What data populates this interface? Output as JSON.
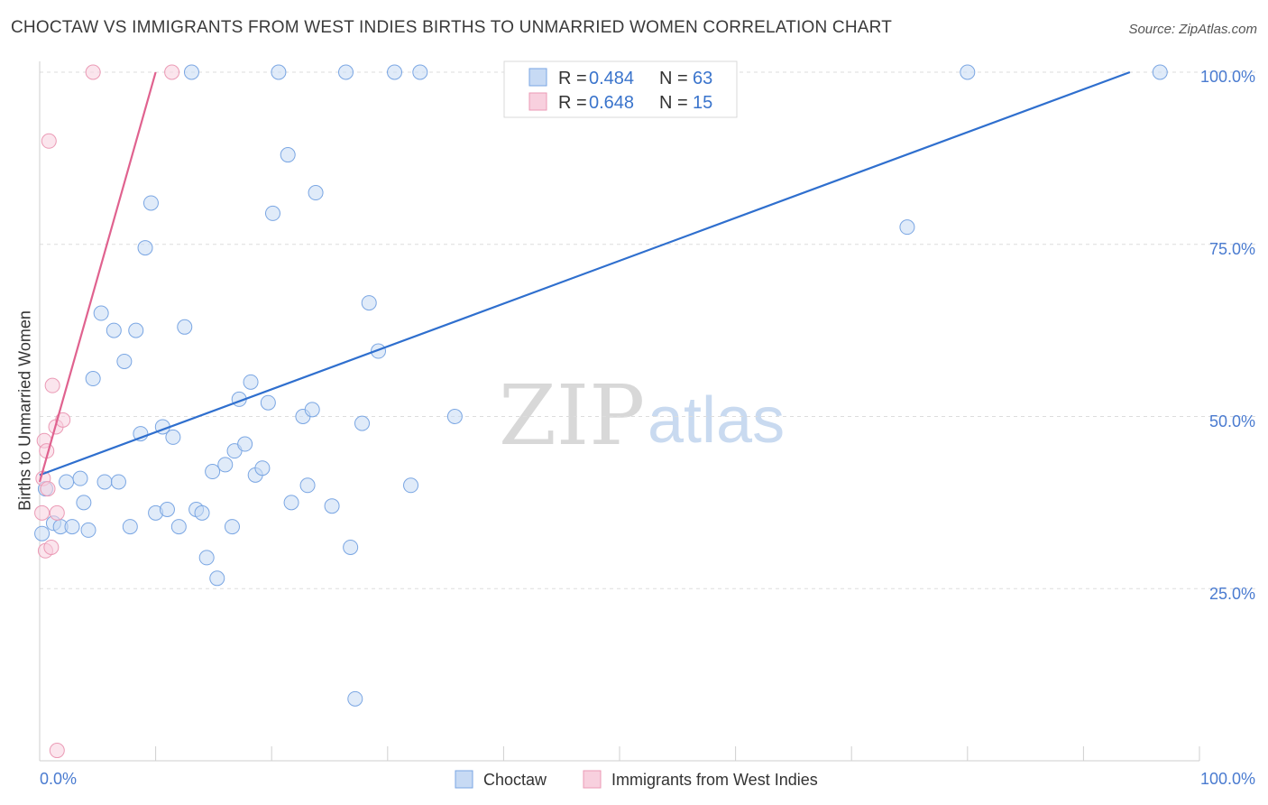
{
  "chart_data": {
    "type": "scatter",
    "title": "CHOCTAW VS IMMIGRANTS FROM WEST INDIES BIRTHS TO UNMARRIED WOMEN CORRELATION CHART",
    "source": "Source: ZipAtlas.com",
    "xlabel": "",
    "ylabel": "Births to Unmarried Women",
    "xlim": [
      0,
      100
    ],
    "ylim": [
      0,
      100
    ],
    "x_tick_labels": [
      "0.0%",
      "100.0%"
    ],
    "y_tick_labels": [
      "25.0%",
      "50.0%",
      "75.0%",
      "100.0%"
    ],
    "watermark": {
      "part1": "ZIP",
      "part2": "atlas"
    },
    "legend_labels": {
      "r": "R =",
      "n": "N ="
    },
    "series": [
      {
        "name": "Choctaw",
        "color": "#7aa6e3",
        "fill": "#c7daf4",
        "line_color": "#2f6fce",
        "r": "0.484",
        "n": "63",
        "trend": {
          "x0": 0,
          "y0": 41.5,
          "x1": 94,
          "y1": 100
        },
        "points": [
          [
            0.5,
            39.5
          ],
          [
            1.2,
            34.5
          ],
          [
            1.8,
            34.0
          ],
          [
            2.3,
            40.5
          ],
          [
            2.8,
            34.0
          ],
          [
            3.5,
            41.0
          ],
          [
            3.8,
            37.5
          ],
          [
            4.2,
            33.5
          ],
          [
            4.6,
            55.5
          ],
          [
            5.3,
            65.0
          ],
          [
            5.6,
            40.5
          ],
          [
            6.4,
            62.5
          ],
          [
            6.8,
            40.5
          ],
          [
            7.3,
            58.0
          ],
          [
            7.8,
            34.0
          ],
          [
            8.3,
            62.5
          ],
          [
            8.7,
            47.5
          ],
          [
            9.1,
            74.5
          ],
          [
            9.6,
            81.0
          ],
          [
            10.0,
            36.0
          ],
          [
            10.6,
            48.5
          ],
          [
            11.0,
            36.5
          ],
          [
            11.5,
            47.0
          ],
          [
            12.0,
            34.0
          ],
          [
            12.5,
            63.0
          ],
          [
            13.1,
            100
          ],
          [
            13.5,
            36.5
          ],
          [
            14.0,
            36.0
          ],
          [
            14.4,
            29.5
          ],
          [
            14.9,
            42.0
          ],
          [
            15.3,
            26.5
          ],
          [
            16.0,
            43.0
          ],
          [
            16.6,
            34.0
          ],
          [
            16.8,
            45.0
          ],
          [
            17.2,
            52.5
          ],
          [
            17.7,
            46.0
          ],
          [
            18.2,
            55.0
          ],
          [
            18.6,
            41.5
          ],
          [
            19.2,
            42.5
          ],
          [
            19.7,
            52.0
          ],
          [
            20.1,
            79.5
          ],
          [
            20.6,
            100
          ],
          [
            21.4,
            88.0
          ],
          [
            21.7,
            37.5
          ],
          [
            22.7,
            50.0
          ],
          [
            23.1,
            40.0
          ],
          [
            23.5,
            51.0
          ],
          [
            23.8,
            82.5
          ],
          [
            25.2,
            37.0
          ],
          [
            26.4,
            100
          ],
          [
            26.8,
            31.0
          ],
          [
            27.2,
            9.0
          ],
          [
            27.8,
            49.0
          ],
          [
            28.4,
            66.5
          ],
          [
            29.2,
            59.5
          ],
          [
            30.6,
            100
          ],
          [
            32.0,
            40.0
          ],
          [
            32.8,
            100
          ],
          [
            35.8,
            50.0
          ],
          [
            74.8,
            77.5
          ],
          [
            80.0,
            100
          ],
          [
            96.6,
            100
          ],
          [
            0.2,
            33.0
          ]
        ]
      },
      {
        "name": "Immigrants from West Indies",
        "color": "#eb9ab5",
        "fill": "#f8d0de",
        "line_color": "#e0628f",
        "r": "0.648",
        "n": "15",
        "trend": {
          "x0": 0,
          "y0": 40.5,
          "x1": 10.0,
          "y1": 100
        },
        "points": [
          [
            0.2,
            36.0
          ],
          [
            0.3,
            41.0
          ],
          [
            0.4,
            46.5
          ],
          [
            0.6,
            45.0
          ],
          [
            0.7,
            39.5
          ],
          [
            0.5,
            30.5
          ],
          [
            0.8,
            90.0
          ],
          [
            1.0,
            31.0
          ],
          [
            1.1,
            54.5
          ],
          [
            1.4,
            48.5
          ],
          [
            1.5,
            36.0
          ],
          [
            2.0,
            49.5
          ],
          [
            1.5,
            1.5
          ],
          [
            4.6,
            100
          ],
          [
            11.4,
            100
          ]
        ]
      }
    ]
  }
}
